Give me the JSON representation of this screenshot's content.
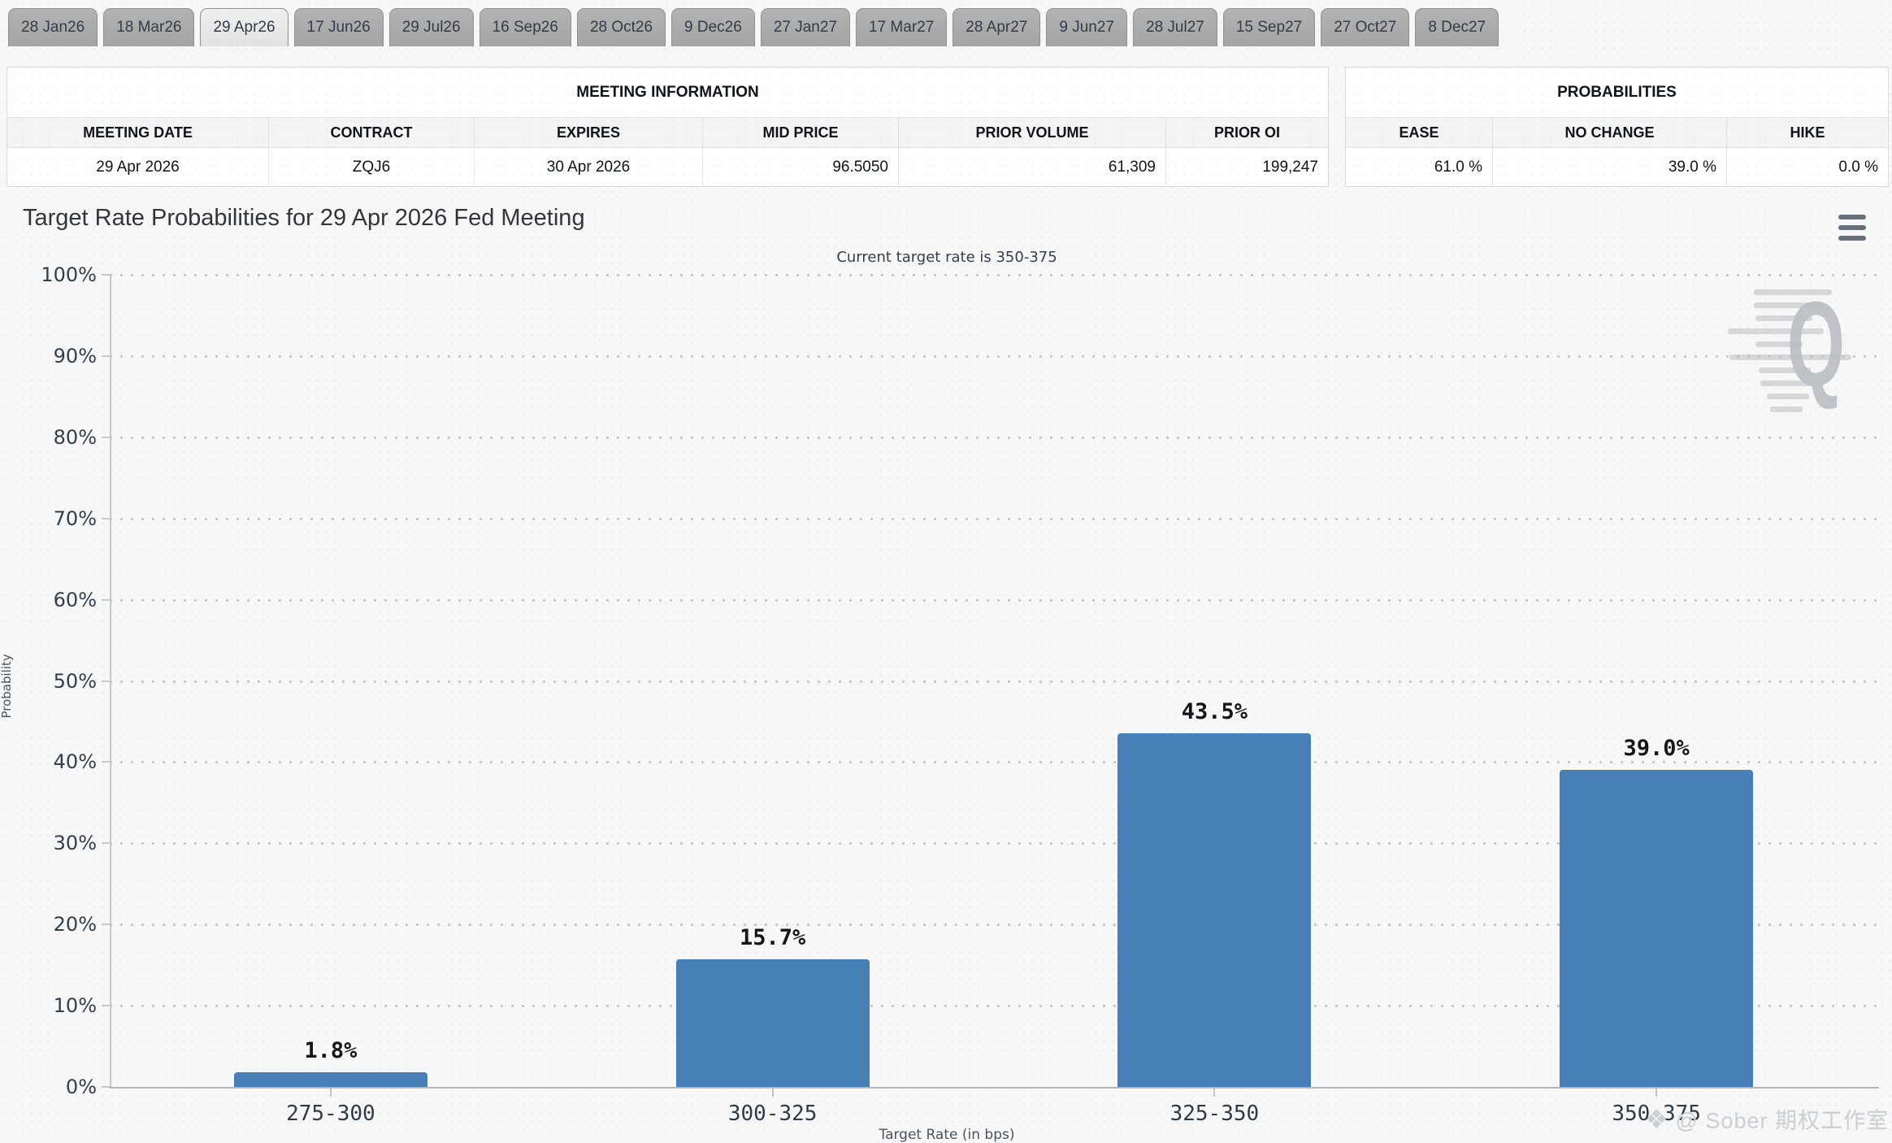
{
  "tabs": {
    "selected_index": 2,
    "items": [
      {
        "label": "28 Jan26"
      },
      {
        "label": "18 Mar26"
      },
      {
        "label": "29 Apr26"
      },
      {
        "label": "17 Jun26"
      },
      {
        "label": "29 Jul26"
      },
      {
        "label": "16 Sep26"
      },
      {
        "label": "28 Oct26"
      },
      {
        "label": "9 Dec26"
      },
      {
        "label": "27 Jan27"
      },
      {
        "label": "17 Mar27"
      },
      {
        "label": "28 Apr27"
      },
      {
        "label": "9 Jun27"
      },
      {
        "label": "28 Jul27"
      },
      {
        "label": "15 Sep27"
      },
      {
        "label": "27 Oct27"
      },
      {
        "label": "8 Dec27"
      }
    ]
  },
  "meeting_info": {
    "title": "MEETING INFORMATION",
    "columns": [
      "MEETING DATE",
      "CONTRACT",
      "EXPIRES",
      "MID PRICE",
      "PRIOR VOLUME",
      "PRIOR OI"
    ],
    "row": [
      "29 Apr 2026",
      "ZQJ6",
      "30 Apr 2026",
      "96.5050",
      "61,309",
      "199,247"
    ],
    "numeric_columns": [
      3,
      4,
      5
    ]
  },
  "probabilities": {
    "title": "PROBABILITIES",
    "columns": [
      "EASE",
      "NO CHANGE",
      "HIKE"
    ],
    "row": [
      "61.0 %",
      "39.0 %",
      "0.0 %"
    ],
    "numeric_columns": [
      0,
      1,
      2
    ]
  },
  "chart": {
    "title": "Target Rate Probabilities for 29 Apr 2026 Fed Meeting",
    "subtitle": "Current target rate is 350-375",
    "menu_icon": "hamburger-icon",
    "q_watermark": "Q",
    "credit_watermark": {
      "icon": "❖",
      "text": "@ Sober 期权工作室"
    }
  },
  "chart_data": {
    "type": "bar",
    "categories": [
      "275-300",
      "300-325",
      "325-350",
      "350-375"
    ],
    "values": [
      1.8,
      15.7,
      43.5,
      39.0
    ],
    "value_labels": [
      "1.8%",
      "15.7%",
      "43.5%",
      "39.0%"
    ],
    "title": "Target Rate Probabilities for 29 Apr 2026 Fed Meeting",
    "subtitle": "Current target rate is 350-375",
    "xlabel": "Target Rate (in bps)",
    "ylabel": "Probability",
    "ylim": [
      0,
      100
    ],
    "ytick_step": 10,
    "ytick_labels": [
      "0%",
      "10%",
      "20%",
      "30%",
      "40%",
      "50%",
      "60%",
      "70%",
      "80%",
      "90%",
      "100%"
    ],
    "grid": "dotted horizontal gridlines at each 10%",
    "legend": "none",
    "bar_color": "#4680b7"
  },
  "colors": {
    "page_bg": "#f7f7f8",
    "bar": "#4680b7",
    "tab_bg": "#a9a9a9",
    "tab_selected_bg": "#e8e8e8",
    "axis_text": "#333e4c",
    "grid": "#c7c9cb",
    "watermark": "#ccd0d4"
  }
}
